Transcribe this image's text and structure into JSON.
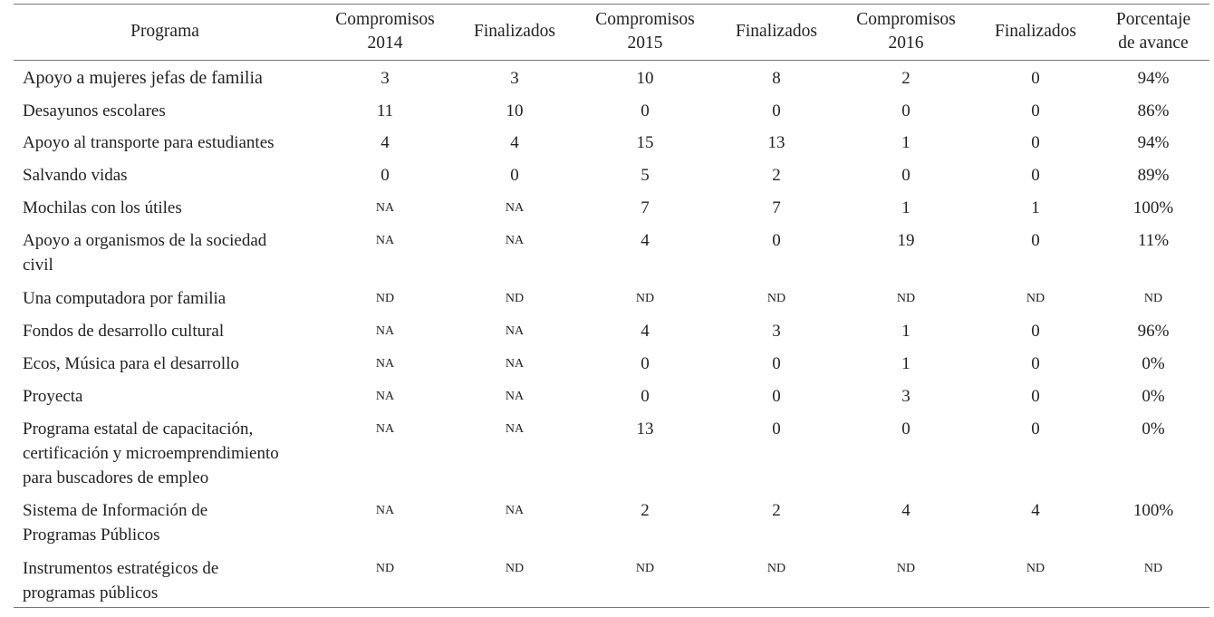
{
  "headers": [
    "Programa",
    "Compromisos\n2014",
    "Finalizados",
    "Compromisos\n2015",
    "Finalizados",
    "Compromisos\n2016",
    "Finalizados",
    "Porcentaje\nde avance"
  ],
  "rows": [
    {
      "programa": "Apoyo a mujeres jefas de familia",
      "values": [
        "3",
        "3",
        "10",
        "8",
        "2",
        "0",
        "94%"
      ]
    },
    {
      "programa": "Desayunos escolares",
      "values": [
        "11",
        "10",
        "0",
        "0",
        "0",
        "0",
        "86%"
      ]
    },
    {
      "programa": "Apoyo al transporte para estudiantes",
      "values": [
        "4",
        "4",
        "15",
        "13",
        "1",
        "0",
        "94%"
      ]
    },
    {
      "programa": "Salvando vidas",
      "values": [
        "0",
        "0",
        "5",
        "2",
        "0",
        "0",
        "89%"
      ]
    },
    {
      "programa": "Mochilas con los útiles",
      "values": [
        "NA",
        "NA",
        "7",
        "7",
        "1",
        "1",
        "100%"
      ]
    },
    {
      "programa": "Apoyo a organismos de la sociedad\ncivil",
      "values": [
        "NA",
        "NA",
        "4",
        "0",
        "19",
        "0",
        "11%"
      ]
    },
    {
      "programa": "Una computadora por familia",
      "values": [
        "ND",
        "ND",
        "ND",
        "ND",
        "ND",
        "ND",
        "ND"
      ]
    },
    {
      "programa": "Fondos de desarrollo cultural",
      "values": [
        "NA",
        "NA",
        "4",
        "3",
        "1",
        "0",
        "96%"
      ]
    },
    {
      "programa": "Ecos, Música para el desarrollo",
      "values": [
        "NA",
        "NA",
        "0",
        "0",
        "1",
        "0",
        "0%"
      ]
    },
    {
      "programa": "Proyecta",
      "values": [
        "NA",
        "NA",
        "0",
        "0",
        "3",
        "0",
        "0%"
      ]
    },
    {
      "programa": "Programa estatal de capacitación,\ncertificación y microemprendimiento\npara buscadores de empleo",
      "values": [
        "NA",
        "NA",
        "13",
        "0",
        "0",
        "0",
        "0%"
      ]
    },
    {
      "programa": "Sistema de Información de\nProgramas Públicos",
      "values": [
        "NA",
        "NA",
        "2",
        "2",
        "4",
        "4",
        "100%"
      ]
    },
    {
      "programa": "Instrumentos estratégicos de\nprogramas públicos",
      "values": [
        "ND",
        "ND",
        "ND",
        "ND",
        "ND",
        "ND",
        "ND"
      ]
    }
  ]
}
